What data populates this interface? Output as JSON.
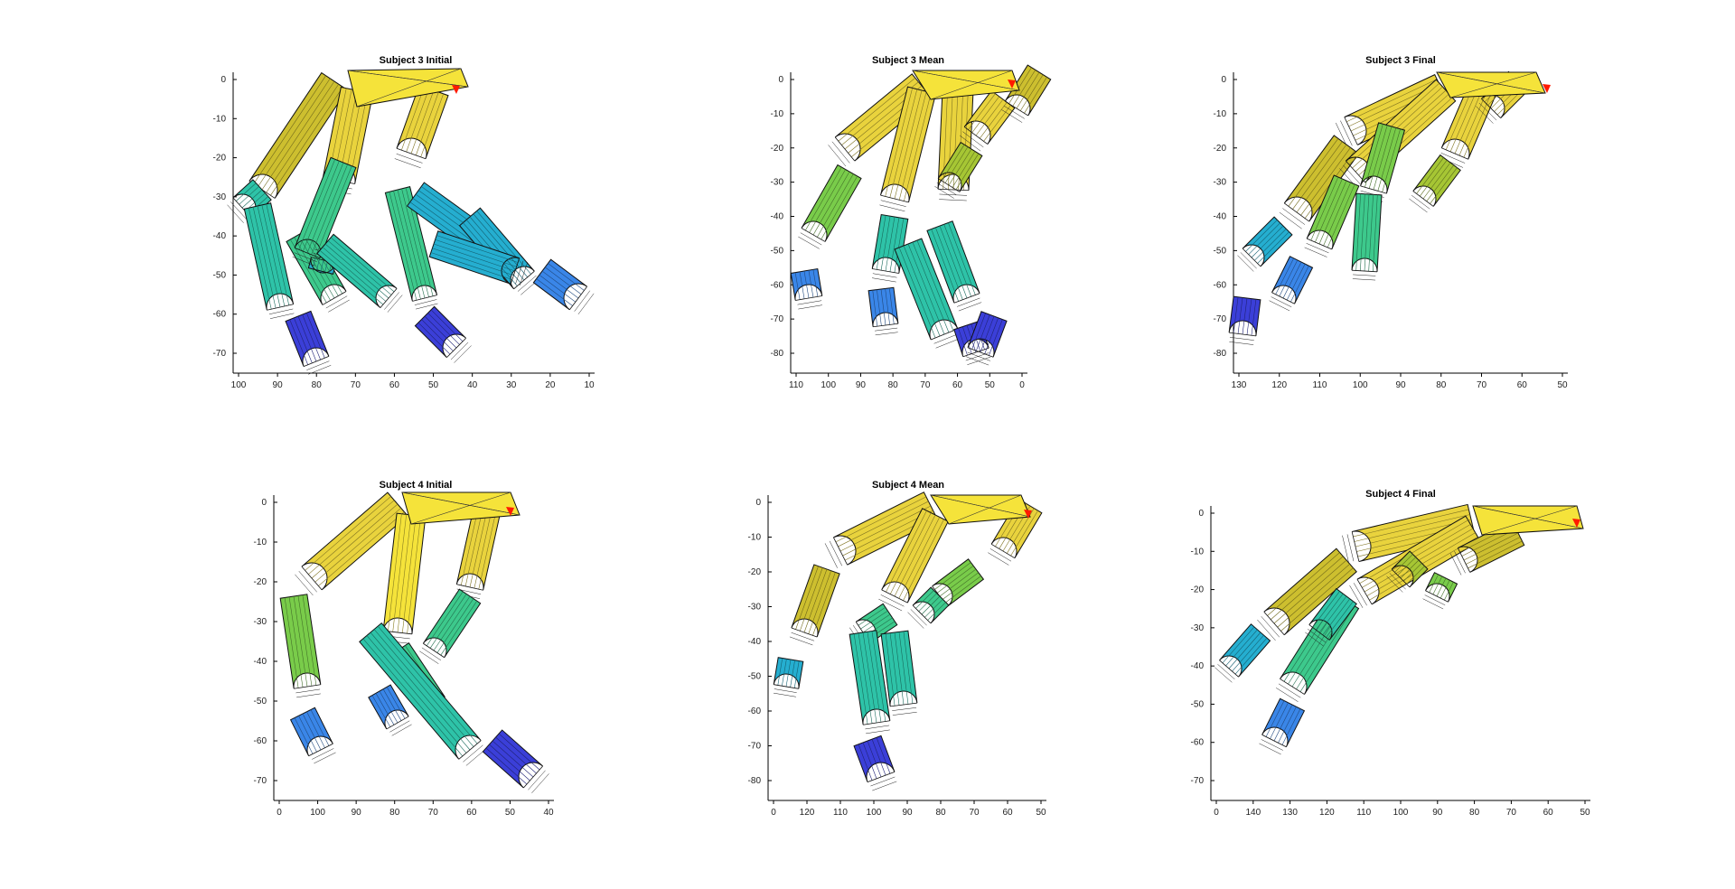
{
  "figure": {
    "background": "#ffffff",
    "palette": [
      "#3b3fd8",
      "#3a86e8",
      "#25aed0",
      "#2ec3a8",
      "#3dc98c",
      "#79cc4a",
      "#a6c634",
      "#cdbf2f",
      "#e9d33d",
      "#f5e33a"
    ],
    "marker_color": "#ff1a00"
  },
  "panels": [
    {
      "title": "Subject 3 Initial",
      "x_ticks": [
        "100",
        "90",
        "80",
        "70",
        "60",
        "50",
        "40",
        "30",
        "20",
        "10"
      ],
      "y_ticks": [
        "0",
        "-10",
        "-20",
        "-30",
        "-40",
        "-50",
        "-60",
        "-70"
      ]
    },
    {
      "title": "Subject 3 Mean",
      "x_ticks": [
        "110",
        "100",
        "90",
        "80",
        "70",
        "60",
        "50",
        "0"
      ],
      "y_ticks": [
        "0",
        "-10",
        "-20",
        "-30",
        "-40",
        "-50",
        "-60",
        "-70",
        "-80"
      ]
    },
    {
      "title": "Subject 3 Final",
      "x_ticks": [
        "130",
        "120",
        "110",
        "100",
        "90",
        "80",
        "70",
        "60",
        "50"
      ],
      "y_ticks": [
        "0",
        "-10",
        "-20",
        "-30",
        "-40",
        "-50",
        "-60",
        "-70",
        "-80"
      ]
    },
    {
      "title": "Subject 4 Initial",
      "x_ticks": [
        "0",
        "100",
        "90",
        "80",
        "70",
        "60",
        "50",
        "40"
      ],
      "y_ticks": [
        "0",
        "-10",
        "-20",
        "-30",
        "-40",
        "-50",
        "-60",
        "-70"
      ]
    },
    {
      "title": "Subject 4 Mean",
      "x_ticks": [
        "0",
        "120",
        "110",
        "100",
        "90",
        "80",
        "70",
        "60",
        "50"
      ],
      "y_ticks": [
        "0",
        "-10",
        "-20",
        "-30",
        "-40",
        "-50",
        "-60",
        "-70",
        "-80"
      ]
    },
    {
      "title": "Subject 4 Final",
      "x_ticks": [
        "0",
        "140",
        "130",
        "120",
        "110",
        "100",
        "90",
        "80",
        "70",
        "60",
        "50"
      ],
      "y_ticks": [
        "0",
        "-10",
        "-20",
        "-30",
        "-40",
        "-50",
        "-60",
        "-70"
      ]
    }
  ]
}
